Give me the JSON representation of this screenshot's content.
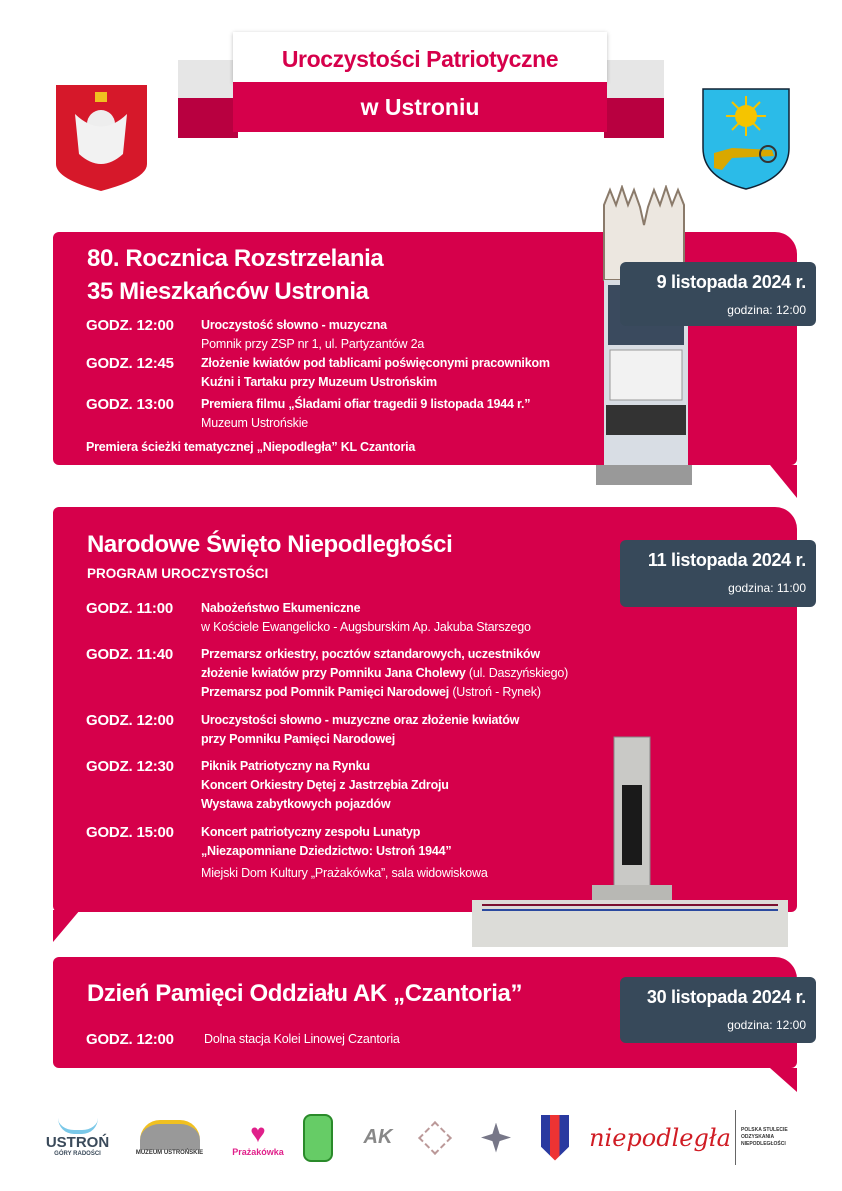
{
  "header": {
    "title_line1": "Uroczystości Patriotyczne",
    "title_line2": "w Ustroniu"
  },
  "colors": {
    "accent": "#d6004b",
    "date_box": "#37495a"
  },
  "emblems": {
    "left": "polish-eagle-emblem",
    "right": "ustron-coat-of-arms"
  },
  "section1": {
    "title_line1": "80. Rocznica Rozstrzelania",
    "title_line2": "35 Mieszkańców Ustronia",
    "date": "9 listopada 2024 r.",
    "hour": "godzina: 12:00",
    "events": [
      {
        "time": "GODZ. 12:00",
        "lines": [
          {
            "text": "Uroczystość słowno - muzyczna",
            "bold": true
          },
          {
            "text": "Pomnik przy ZSP nr 1, ul. Partyzantów 2a",
            "bold": false
          }
        ]
      },
      {
        "time": "GODZ. 12:45",
        "lines": [
          {
            "text": "Złożenie kwiatów pod tablicami poświęconymi pracownikom",
            "bold": true
          },
          {
            "text": "Kuźni i Tartaku przy Muzeum Ustrońskim",
            "bold": true
          }
        ]
      },
      {
        "time": "GODZ. 13:00",
        "lines": [
          {
            "text": "Premiera filmu „Śladami ofiar tragedii 9 listopada 1944 r.”",
            "bold": true
          },
          {
            "text": "Muzeum Ustrońskie",
            "bold": false
          }
        ]
      }
    ],
    "footer": "Premiera ścieżki tematycznej „Niepodległa” KL Czantoria"
  },
  "section2": {
    "title": "Narodowe Święto Niepodległości",
    "subtitle": "PROGRAM UROCZYSTOŚCI",
    "date": "11 listopada 2024 r.",
    "hour": "godzina: 11:00",
    "events": [
      {
        "time": "GODZ. 11:00",
        "l1": "Nabożeństwo Ekumeniczne",
        "l2": "w Kościele Ewangelicko - Augsburskim Ap. Jakuba Starszego"
      },
      {
        "time": "GODZ. 11:40",
        "l1": "Przemarsz orkiestry, pocztów sztandarowych, uczestników",
        "l2b": "złożenie kwiatów przy Pomniku Jana Cholewy",
        "l2n": " (ul. Daszyńskiego)",
        "l3b": "Przemarsz pod Pomnik Pamięci Narodowej",
        "l3n": " (Ustroń - Rynek)"
      },
      {
        "time": "GODZ. 12:00",
        "l1": "Uroczystości słowno - muzyczne oraz złożenie kwiatów",
        "l2": "przy Pomniku Pamięci Narodowej"
      },
      {
        "time": "GODZ. 12:30",
        "l1": "Piknik Patriotyczny na Rynku",
        "l2": "Koncert Orkiestry Dętej z Jastrzębia Zdroju",
        "l3": "Wystawa zabytkowych pojazdów"
      },
      {
        "time": "GODZ. 15:00",
        "l1": "Koncert patriotyczny zespołu Lunatyp",
        "l2": "„Niezapomniane Dziedzictwo: Ustroń 1944”",
        "l3": "Miejski Dom Kultury „Prażakówka”, sala widowiskowa"
      }
    ]
  },
  "section3": {
    "title": "Dzień Pamięci Oddziału AK „Czantoria”",
    "date": "30 listopada 2024 r.",
    "hour": "godzina: 12:00",
    "time": "GODZ. 12:00",
    "place": "Dolna stacja Kolei Linowej Czantoria"
  },
  "logos": [
    "USTROŃ",
    "GÓRY RADOŚCI",
    "MUZEUM USTROŃSKIE",
    "Prażakówka",
    "AK",
    "niepodległa",
    "POLSKA STULECIE ODZYSKANIA NIEPODLEGŁOŚCI"
  ]
}
